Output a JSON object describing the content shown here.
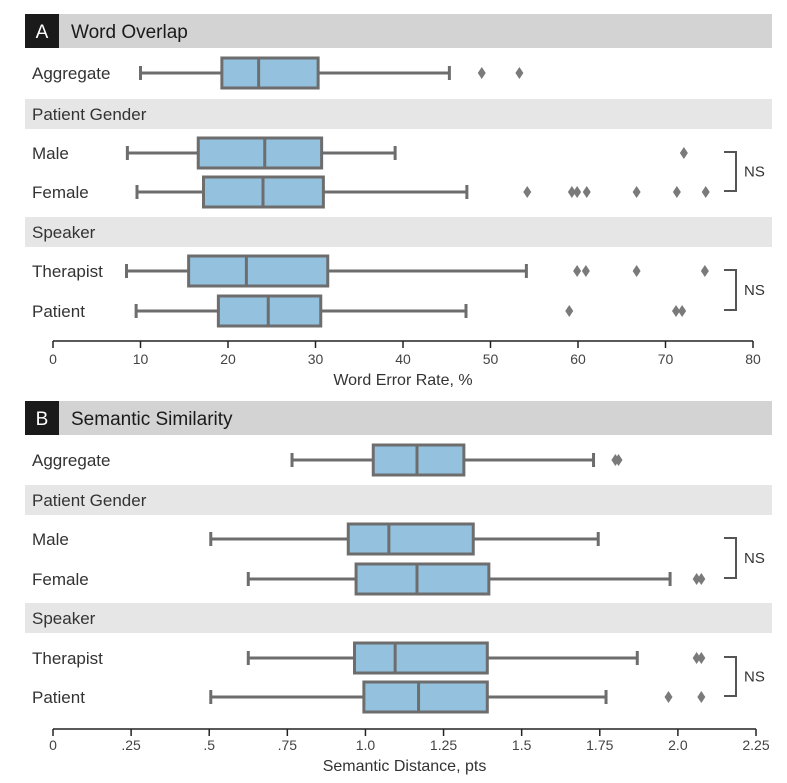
{
  "colors": {
    "header_bg": "#d3d3d3",
    "badge_bg": "#1a1a1a",
    "badge_text": "#ffffff",
    "group_bg": "#e6e6e6",
    "box_fill": "#94c2de",
    "box_stroke": "#6d6d6d",
    "text": "#333333",
    "axis_text": "#444444"
  },
  "chart_data": [
    {
      "type": "boxplot",
      "panel_label": "A",
      "title": "Word Overlap",
      "xlabel": "Word Error Rate, %",
      "xlim": [
        0,
        80
      ],
      "xticks": [
        0,
        10,
        20,
        30,
        40,
        50,
        60,
        70,
        80
      ],
      "xtick_labels": [
        "0",
        "10",
        "20",
        "30",
        "40",
        "50",
        "60",
        "70",
        "80"
      ],
      "groups": [
        {
          "header": "",
          "significance": "",
          "rows": [
            {
              "label": "Aggregate",
              "whisker_low": 10,
              "q1": 19.3,
              "median": 23.5,
              "q3": 30.3,
              "whisker_high": 45.3,
              "outliers": [
                49,
                53.3
              ]
            }
          ]
        },
        {
          "header": "Patient Gender",
          "significance": "NS",
          "rows": [
            {
              "label": "Male",
              "whisker_low": 8.5,
              "q1": 16.6,
              "median": 24.2,
              "q3": 30.7,
              "whisker_high": 39.1,
              "outliers": [
                72.1
              ]
            },
            {
              "label": "Female",
              "whisker_low": 9.6,
              "q1": 17.2,
              "median": 24,
              "q3": 30.9,
              "whisker_high": 47.3,
              "outliers": [
                54.2,
                59.3,
                59.9,
                61,
                66.7,
                71.3,
                74.6
              ]
            }
          ]
        },
        {
          "header": "Speaker",
          "significance": "NS",
          "rows": [
            {
              "label": "Therapist",
              "whisker_low": 8.4,
              "q1": 15.5,
              "median": 22.1,
              "q3": 31.4,
              "whisker_high": 54.1,
              "outliers": [
                59.9,
                60.9,
                66.7,
                74.5
              ]
            },
            {
              "label": "Patient",
              "whisker_low": 9.5,
              "q1": 18.9,
              "median": 24.6,
              "q3": 30.6,
              "whisker_high": 47.2,
              "outliers": [
                59,
                71.2,
                71.9
              ]
            }
          ]
        }
      ]
    },
    {
      "type": "boxplot",
      "panel_label": "B",
      "title": "Semantic Similarity",
      "xlabel": "Semantic Distance, pts",
      "xlim": [
        0,
        2.25
      ],
      "xticks": [
        0,
        0.25,
        0.5,
        0.75,
        1.0,
        1.25,
        1.5,
        1.75,
        2.0,
        2.25
      ],
      "xtick_labels": [
        "0",
        ".25",
        ".5",
        ".75",
        "1.0",
        "1.25",
        "1.5",
        "1.75",
        "2.0",
        "2.25"
      ],
      "groups": [
        {
          "header": "",
          "significance": "",
          "rows": [
            {
              "label": "Aggregate",
              "whisker_low": 0.765,
              "q1": 1.025,
              "median": 1.165,
              "q3": 1.315,
              "whisker_high": 1.73,
              "outliers": [
                1.8,
                1.81
              ]
            }
          ]
        },
        {
          "header": "Patient Gender",
          "significance": "NS",
          "rows": [
            {
              "label": "Male",
              "whisker_low": 0.505,
              "q1": 0.945,
              "median": 1.075,
              "q3": 1.345,
              "whisker_high": 1.745,
              "outliers": []
            },
            {
              "label": "Female",
              "whisker_low": 0.625,
              "q1": 0.97,
              "median": 1.165,
              "q3": 1.395,
              "whisker_high": 1.975,
              "outliers": [
                2.06,
                2.075
              ]
            }
          ]
        },
        {
          "header": "Speaker",
          "significance": "NS",
          "rows": [
            {
              "label": "Therapist",
              "whisker_low": 0.625,
              "q1": 0.965,
              "median": 1.095,
              "q3": 1.39,
              "whisker_high": 1.87,
              "outliers": [
                2.06,
                2.075
              ]
            },
            {
              "label": "Patient",
              "whisker_low": 0.505,
              "q1": 0.995,
              "median": 1.17,
              "q3": 1.39,
              "whisker_high": 1.77,
              "outliers": [
                1.97,
                2.075
              ]
            }
          ]
        }
      ]
    }
  ]
}
